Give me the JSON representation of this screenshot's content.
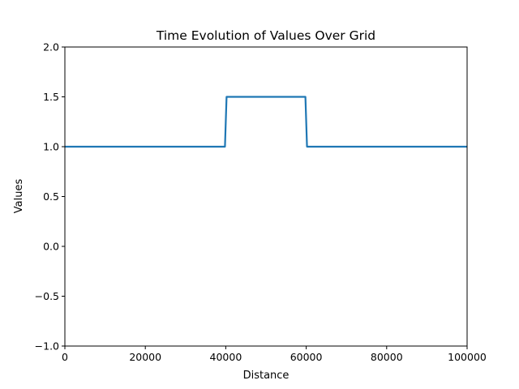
{
  "chart_data": {
    "type": "line",
    "title": "Time Evolution of Values Over Grid",
    "xlabel": "Distance",
    "ylabel": "Values",
    "xlim": [
      0,
      100000
    ],
    "ylim": [
      -1.0,
      2.0
    ],
    "grid": false,
    "xticks": [
      0,
      20000,
      40000,
      60000,
      80000,
      100000
    ],
    "xtick_labels": [
      "0",
      "20000",
      "40000",
      "60000",
      "80000",
      "100000"
    ],
    "yticks": [
      -1.0,
      -0.5,
      0.0,
      0.5,
      1.0,
      1.5,
      2.0
    ],
    "ytick_labels": [
      "−1.0",
      "−0.5",
      "0.0",
      "0.5",
      "1.0",
      "1.5",
      "2.0"
    ],
    "series": [
      {
        "color": "#1f77b4",
        "x": [
          0,
          39800,
          40200,
          59800,
          60200,
          100000
        ],
        "y": [
          1.0,
          1.0,
          1.5,
          1.5,
          1.0,
          1.0
        ]
      }
    ]
  }
}
